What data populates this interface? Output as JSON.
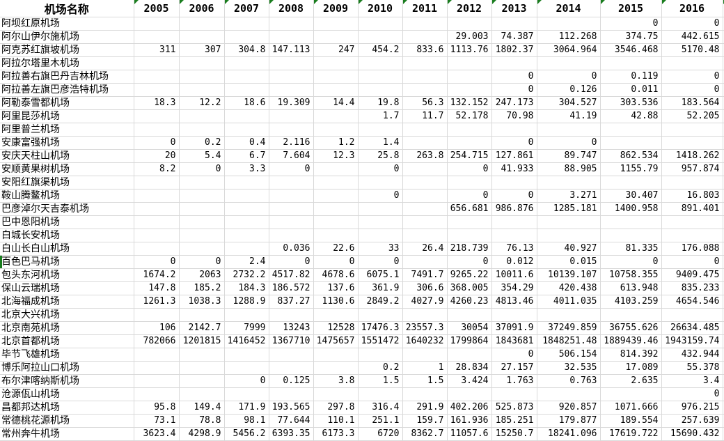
{
  "sheet": {
    "name_header": "机场名称",
    "years": [
      "2005",
      "2006",
      "2007",
      "2008",
      "2009",
      "2010",
      "2011",
      "2012",
      "2013",
      "2014",
      "2015",
      "2016"
    ],
    "rows": [
      {
        "name": "阿坝红原机场",
        "values": [
          "",
          "",
          "",
          "",
          "",
          "",
          "",
          "",
          "",
          "",
          "0",
          "0"
        ]
      },
      {
        "name": "阿尔山伊尔施机场",
        "values": [
          "",
          "",
          "",
          "",
          "",
          "",
          "",
          "29.003",
          "74.387",
          "112.268",
          "374.75",
          "442.615"
        ]
      },
      {
        "name": "阿克苏红旗坡机场",
        "values": [
          "311",
          "307",
          "304.8",
          "147.113",
          "247",
          "454.2",
          "833.6",
          "1113.76",
          "1802.37",
          "3064.964",
          "3546.468",
          "5170.48"
        ]
      },
      {
        "name": "阿拉尔塔里木机场",
        "values": [
          "",
          "",
          "",
          "",
          "",
          "",
          "",
          "",
          "",
          "",
          "",
          ""
        ]
      },
      {
        "name": "阿拉善右旗巴丹吉林机场",
        "values": [
          "",
          "",
          "",
          "",
          "",
          "",
          "",
          "",
          "0",
          "0",
          "0.119",
          "0"
        ]
      },
      {
        "name": "阿拉善左旗巴彦浩特机场",
        "values": [
          "",
          "",
          "",
          "",
          "",
          "",
          "",
          "",
          "0",
          "0.126",
          "0.011",
          "0"
        ]
      },
      {
        "name": "阿勒泰雪都机场",
        "values": [
          "18.3",
          "12.2",
          "18.6",
          "19.309",
          "14.4",
          "19.8",
          "56.3",
          "132.152",
          "247.173",
          "304.527",
          "303.536",
          "183.564"
        ]
      },
      {
        "name": "阿里昆莎机场",
        "values": [
          "",
          "",
          "",
          "",
          "",
          "1.7",
          "11.7",
          "52.178",
          "70.98",
          "41.19",
          "42.88",
          "52.205"
        ]
      },
      {
        "name": "阿里普兰机场",
        "values": [
          "",
          "",
          "",
          "",
          "",
          "",
          "",
          "",
          "",
          "",
          "",
          ""
        ]
      },
      {
        "name": "安康富强机场",
        "values": [
          "0",
          "0.2",
          "0.4",
          "2.116",
          "1.2",
          "1.4",
          "",
          "",
          "0",
          "0",
          "",
          ""
        ]
      },
      {
        "name": "安庆天柱山机场",
        "values": [
          "20",
          "5.4",
          "6.7",
          "7.604",
          "12.3",
          "25.8",
          "263.8",
          "254.715",
          "127.861",
          "89.747",
          "862.534",
          "1418.262"
        ]
      },
      {
        "name": "安顺黄果树机场",
        "values": [
          "8.2",
          "0",
          "3.3",
          "0",
          "",
          "0",
          "",
          "0",
          "41.933",
          "88.905",
          "1155.79",
          "957.874"
        ]
      },
      {
        "name": "安阳红旗渠机场",
        "values": [
          "",
          "",
          "",
          "",
          "",
          "",
          "",
          "",
          "",
          "",
          "",
          ""
        ]
      },
      {
        "name": "鞍山腾鳌机场",
        "values": [
          "",
          "",
          "",
          "",
          "",
          "0",
          "",
          "0",
          "0",
          "3.271",
          "30.407",
          "16.803"
        ]
      },
      {
        "name": "巴彦淖尔天吉泰机场",
        "values": [
          "",
          "",
          "",
          "",
          "",
          "",
          "",
          "656.681",
          "986.876",
          "1285.181",
          "1400.958",
          "891.401"
        ]
      },
      {
        "name": "巴中恩阳机场",
        "values": [
          "",
          "",
          "",
          "",
          "",
          "",
          "",
          "",
          "",
          "",
          "",
          ""
        ]
      },
      {
        "name": "白城长安机场",
        "values": [
          "",
          "",
          "",
          "",
          "",
          "",
          "",
          "",
          "",
          "",
          "",
          ""
        ]
      },
      {
        "name": "白山长白山机场",
        "values": [
          "",
          "",
          "",
          "0.036",
          "22.6",
          "33",
          "26.4",
          "218.739",
          "76.13",
          "40.927",
          "81.335",
          "176.088"
        ]
      },
      {
        "name": "百色巴马机场",
        "left_marker": true,
        "values": [
          "0",
          "0",
          "2.4",
          "0",
          "0",
          "0",
          "",
          "0",
          "0.012",
          "0.015",
          "0",
          "0"
        ]
      },
      {
        "name": "包头东河机场",
        "values": [
          "1674.2",
          "2063",
          "2732.2",
          "4517.82",
          "4678.6",
          "6075.1",
          "7491.7",
          "9265.22",
          "10011.6",
          "10139.107",
          "10758.355",
          "9409.475"
        ]
      },
      {
        "name": "保山云瑞机场",
        "values": [
          "147.8",
          "185.2",
          "184.3",
          "186.572",
          "137.6",
          "361.9",
          "306.6",
          "368.005",
          "354.29",
          "420.438",
          "613.948",
          "835.233"
        ]
      },
      {
        "name": "北海福成机场",
        "values": [
          "1261.3",
          "1038.3",
          "1288.9",
          "837.27",
          "1130.6",
          "2849.2",
          "4027.9",
          "4260.23",
          "4813.46",
          "4011.035",
          "4103.259",
          "4654.546"
        ]
      },
      {
        "name": "北京大兴机场",
        "values": [
          "",
          "",
          "",
          "",
          "",
          "",
          "",
          "",
          "",
          "",
          "",
          ""
        ]
      },
      {
        "name": "北京南苑机场",
        "values": [
          "106",
          "2142.7",
          "7999",
          "13243",
          "12528",
          "17476.3",
          "23557.3",
          "30054",
          "37091.9",
          "37249.859",
          "36755.626",
          "26634.485"
        ]
      },
      {
        "name": "北京首都机场",
        "values": [
          "782066",
          "1201815",
          "1416452",
          "1367710",
          "1475657",
          "1551472",
          "1640232",
          "1799864",
          "1843681",
          "1848251.48",
          "1889439.46",
          "1943159.74"
        ]
      },
      {
        "name": "毕节飞雄机场",
        "values": [
          "",
          "",
          "",
          "",
          "",
          "",
          "",
          "",
          "0",
          "506.154",
          "814.392",
          "432.944"
        ]
      },
      {
        "name": "博乐阿拉山口机场",
        "values": [
          "",
          "",
          "",
          "",
          "",
          "0.2",
          "1",
          "28.834",
          "27.157",
          "32.535",
          "17.089",
          "55.378"
        ]
      },
      {
        "name": "布尔津喀纳斯机场",
        "values": [
          "",
          "",
          "0",
          "0.125",
          "3.8",
          "1.5",
          "1.5",
          "3.424",
          "1.763",
          "0.763",
          "2.635",
          "3.4"
        ]
      },
      {
        "name": "沧源佤山机场",
        "values": [
          "",
          "",
          "",
          "",
          "",
          "",
          "",
          "",
          "",
          "",
          "",
          "0"
        ]
      },
      {
        "name": "昌都邦达机场",
        "values": [
          "95.8",
          "149.4",
          "171.9",
          "193.565",
          "297.8",
          "316.4",
          "291.9",
          "402.206",
          "525.873",
          "920.857",
          "1071.666",
          "976.215"
        ]
      },
      {
        "name": "常德桃花源机场",
        "values": [
          "73.1",
          "78.8",
          "98.1",
          "77.644",
          "110.1",
          "251.1",
          "159.7",
          "161.936",
          "185.251",
          "179.877",
          "189.554",
          "257.639"
        ]
      },
      {
        "name": "常州奔牛机场",
        "values": [
          "3623.4",
          "4298.9",
          "5456.2",
          "6393.35",
          "6173.3",
          "6720",
          "8362.7",
          "11057.6",
          "15250.7",
          "18241.096",
          "17619.722",
          "15690.432"
        ]
      }
    ]
  },
  "icons": {
    "error_indicator": "green-corner-triangle"
  },
  "colors": {
    "marker_green": "#1a7d1f",
    "gridline": "#d9d9d9",
    "text": "#000000",
    "background": "#ffffff"
  }
}
